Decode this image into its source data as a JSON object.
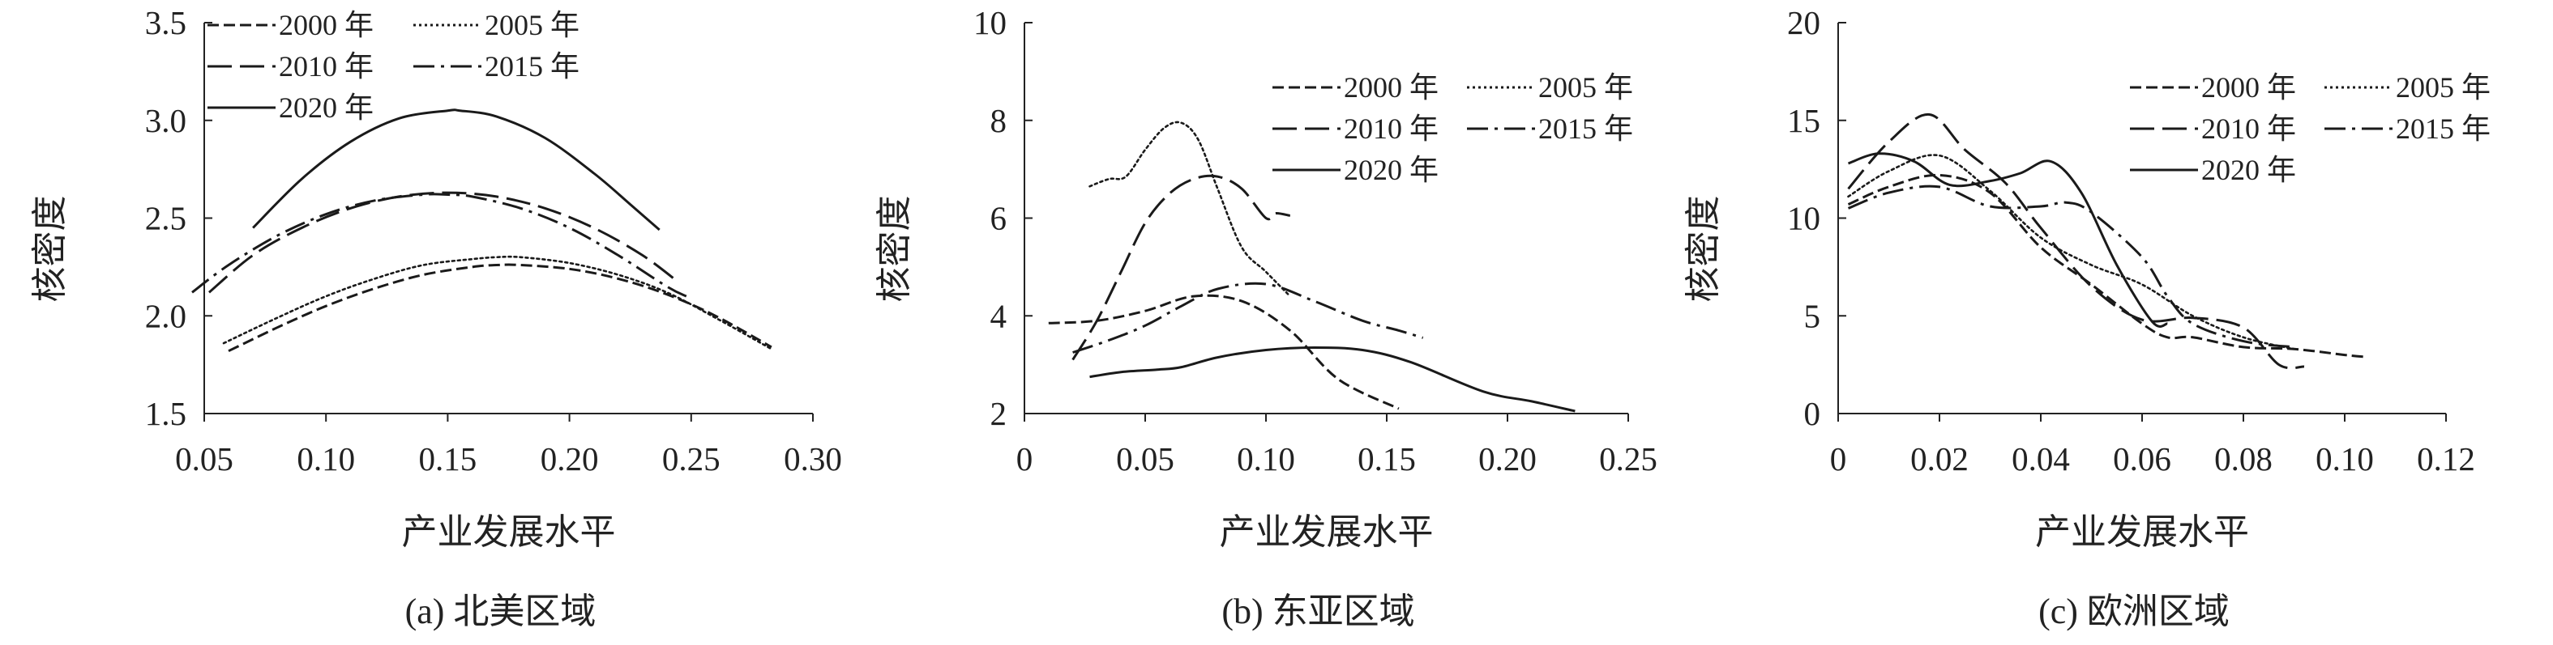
{
  "chart_data": [
    {
      "type": "line",
      "caption": "(a) 北美区域",
      "xlabel": "产业发展水平",
      "ylabel": "核密度",
      "xlim": [
        0.05,
        0.3
      ],
      "ylim": [
        1.5,
        3.5
      ],
      "xticks": [
        "0.05",
        "0.10",
        "0.15",
        "0.20",
        "0.25",
        "0.30"
      ],
      "yticks": [
        "1.5",
        "2.0",
        "2.5",
        "3.0",
        "3.5"
      ],
      "legend_position": "top-left",
      "series": [
        {
          "name": "2000 年",
          "style": "short-dash",
          "x": [
            0.06,
            0.08,
            0.1,
            0.12,
            0.14,
            0.16,
            0.17,
            0.18,
            0.2,
            0.22,
            0.24,
            0.26,
            0.283
          ],
          "y": [
            1.82,
            1.94,
            2.05,
            2.14,
            2.21,
            2.25,
            2.26,
            2.26,
            2.24,
            2.19,
            2.11,
            2.0,
            1.84
          ]
        },
        {
          "name": "2005 年",
          "style": "dotted",
          "x": [
            0.058,
            0.08,
            0.1,
            0.12,
            0.14,
            0.16,
            0.17,
            0.18,
            0.2,
            0.22,
            0.24,
            0.26,
            0.283
          ],
          "y": [
            1.86,
            1.99,
            2.1,
            2.19,
            2.26,
            2.29,
            2.3,
            2.3,
            2.27,
            2.21,
            2.12,
            1.99,
            1.83
          ]
        },
        {
          "name": "2010 年",
          "style": "long-dash",
          "x": [
            0.052,
            0.07,
            0.09,
            0.11,
            0.13,
            0.15,
            0.17,
            0.19,
            0.21,
            0.23,
            0.245
          ],
          "y": [
            2.12,
            2.31,
            2.45,
            2.55,
            2.61,
            2.63,
            2.61,
            2.55,
            2.45,
            2.31,
            2.17
          ]
        },
        {
          "name": "2015 年",
          "style": "dash-dot",
          "x": [
            0.045,
            0.06,
            0.08,
            0.1,
            0.12,
            0.14,
            0.15,
            0.16,
            0.18,
            0.2,
            0.22,
            0.24,
            0.248
          ],
          "y": [
            2.12,
            2.26,
            2.41,
            2.52,
            2.59,
            2.62,
            2.62,
            2.61,
            2.55,
            2.45,
            2.31,
            2.15,
            2.1
          ]
        },
        {
          "name": "2020 年",
          "style": "solid",
          "x": [
            0.07,
            0.09,
            0.11,
            0.13,
            0.15,
            0.155,
            0.17,
            0.19,
            0.21,
            0.225,
            0.237
          ],
          "y": [
            2.45,
            2.7,
            2.89,
            3.01,
            3.05,
            3.05,
            3.02,
            2.91,
            2.73,
            2.57,
            2.44
          ]
        }
      ]
    },
    {
      "type": "line",
      "caption": "(b) 东亚区域",
      "xlabel": "产业发展水平",
      "ylabel": "核密度",
      "xlim": [
        0,
        0.25
      ],
      "ylim": [
        2,
        10
      ],
      "xticks": [
        "0",
        "0.05",
        "0.10",
        "0.15",
        "0.20",
        "0.25"
      ],
      "yticks": [
        "2",
        "4",
        "6",
        "8",
        "10"
      ],
      "legend_position": "top-right",
      "series": [
        {
          "name": "2000 年",
          "style": "short-dash",
          "x": [
            0.01,
            0.03,
            0.05,
            0.07,
            0.09,
            0.11,
            0.13,
            0.155
          ],
          "y": [
            3.85,
            3.9,
            4.1,
            4.4,
            4.3,
            3.7,
            2.7,
            2.1
          ]
        },
        {
          "name": "2005 年",
          "style": "dotted",
          "x": [
            0.027,
            0.035,
            0.042,
            0.05,
            0.058,
            0.065,
            0.072,
            0.08,
            0.09,
            0.1,
            0.11
          ],
          "y": [
            6.65,
            6.8,
            6.85,
            7.4,
            7.85,
            7.95,
            7.6,
            6.6,
            5.4,
            4.9,
            4.4
          ]
        },
        {
          "name": "2010 年",
          "style": "long-dash",
          "x": [
            0.02,
            0.03,
            0.04,
            0.05,
            0.06,
            0.07,
            0.08,
            0.09,
            0.1,
            0.104,
            0.11
          ],
          "y": [
            3.1,
            3.9,
            4.9,
            5.9,
            6.5,
            6.8,
            6.85,
            6.6,
            6.0,
            6.1,
            6.05
          ]
        },
        {
          "name": "2015 年",
          "style": "dash-dot",
          "x": [
            0.02,
            0.035,
            0.05,
            0.065,
            0.08,
            0.1,
            0.12,
            0.14,
            0.155,
            0.165
          ],
          "y": [
            3.25,
            3.5,
            3.8,
            4.2,
            4.55,
            4.65,
            4.3,
            3.9,
            3.7,
            3.55
          ]
        },
        {
          "name": "2020 年",
          "style": "solid",
          "x": [
            0.027,
            0.04,
            0.055,
            0.065,
            0.08,
            0.1,
            0.12,
            0.14,
            0.16,
            0.19,
            0.21,
            0.228
          ],
          "y": [
            2.75,
            2.85,
            2.9,
            2.95,
            3.15,
            3.3,
            3.35,
            3.3,
            3.05,
            2.45,
            2.25,
            2.05
          ]
        }
      ]
    },
    {
      "type": "line",
      "caption": "(c) 欧洲区域",
      "xlabel": "产业发展水平",
      "ylabel": "核密度",
      "xlim": [
        0,
        0.12
      ],
      "ylim": [
        0,
        20
      ],
      "xticks": [
        "0",
        "0.02",
        "0.04",
        "0.06",
        "0.08",
        "0.10",
        "0.12"
      ],
      "yticks": [
        "0",
        "5",
        "10",
        "15",
        "20"
      ],
      "legend_position": "top-right",
      "series": [
        {
          "name": "2000 年",
          "style": "short-dash",
          "x": [
            0.002,
            0.01,
            0.02,
            0.03,
            0.04,
            0.05,
            0.06,
            0.065,
            0.07,
            0.08,
            0.09,
            0.1,
            0.104
          ],
          "y": [
            10.7,
            11.6,
            12.2,
            11.3,
            8.5,
            6.6,
            4.6,
            3.9,
            3.9,
            3.4,
            3.3,
            3.0,
            2.9
          ]
        },
        {
          "name": "2005 年",
          "style": "dotted",
          "x": [
            0.002,
            0.01,
            0.02,
            0.03,
            0.04,
            0.05,
            0.06,
            0.07,
            0.08,
            0.09
          ],
          "y": [
            11.1,
            12.4,
            13.2,
            11.4,
            9.0,
            7.6,
            6.6,
            5.0,
            3.9,
            3.3
          ]
        },
        {
          "name": "2010 年",
          "style": "long-dash",
          "x": [
            0.002,
            0.01,
            0.018,
            0.025,
            0.033,
            0.04,
            0.05,
            0.06,
            0.07,
            0.08,
            0.087,
            0.092
          ],
          "y": [
            11.5,
            13.9,
            15.3,
            13.5,
            11.8,
            9.5,
            6.5,
            4.8,
            4.9,
            4.4,
            2.5,
            2.4
          ]
        },
        {
          "name": "2015 年",
          "style": "dash-dot",
          "x": [
            0.002,
            0.01,
            0.02,
            0.03,
            0.04,
            0.045,
            0.05,
            0.06,
            0.065,
            0.07,
            0.08,
            0.09
          ],
          "y": [
            10.5,
            11.3,
            11.6,
            10.6,
            10.6,
            10.8,
            10.3,
            8.0,
            6.0,
            4.6,
            3.7,
            3.4
          ]
        },
        {
          "name": "2020 年",
          "style": "solid",
          "x": [
            0.002,
            0.008,
            0.015,
            0.022,
            0.03,
            0.036,
            0.042,
            0.048,
            0.055,
            0.062,
            0.065
          ],
          "y": [
            12.8,
            13.3,
            12.9,
            11.7,
            11.9,
            12.3,
            12.9,
            11.3,
            7.6,
            4.7,
            4.6
          ]
        }
      ]
    }
  ]
}
